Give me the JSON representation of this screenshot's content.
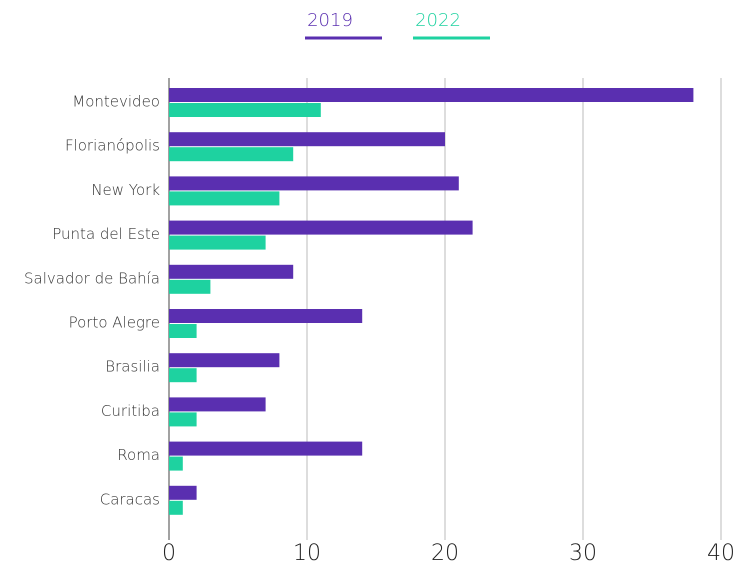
{
  "chart_data": {
    "type": "bar",
    "orientation": "horizontal",
    "categories": [
      "Montevideo",
      "Florianópolis",
      "New York",
      "Punta del Este",
      "Salvador de Bahía",
      "Porto Alegre",
      "Brasilia",
      "Curitiba",
      "Roma",
      "Caracas"
    ],
    "series": [
      {
        "name": "2019",
        "color": "#5a2fb0",
        "values": [
          38,
          20,
          21,
          22,
          9,
          14,
          8,
          7,
          14,
          2
        ]
      },
      {
        "name": "2022",
        "color": "#1ed2a0",
        "values": [
          11,
          9,
          8,
          7,
          3,
          2,
          2,
          2,
          1,
          1
        ]
      }
    ],
    "xlim": [
      0,
      40
    ],
    "xticks": [
      0,
      10,
      20,
      30,
      40
    ],
    "grid": true,
    "legend": "top"
  }
}
